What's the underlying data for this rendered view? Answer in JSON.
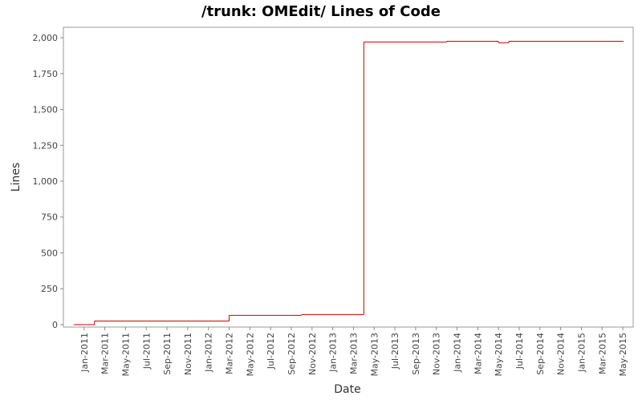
{
  "chart_data": {
    "type": "step",
    "title": "/trunk: OMEdit/ Lines of Code",
    "x_label": "Date",
    "y_label": "Lines",
    "series": [
      {
        "name": "Lines",
        "color": "#cc0000",
        "x": [
          "2010-12",
          "2011-02",
          "2012-03",
          "2012-10",
          "2013-04",
          "2013-12",
          "2014-05",
          "2014-06",
          "2015-05"
        ],
        "values": [
          0,
          25,
          65,
          70,
          1970,
          1975,
          1965,
          1975,
          1975
        ]
      }
    ],
    "xlim": [
      "2010-11",
      "2015-06"
    ],
    "xticks": [
      {
        "value": "2011-01",
        "label": "Jan-2011"
      },
      {
        "value": "2011-03",
        "label": "Mar-2011"
      },
      {
        "value": "2011-05",
        "label": "May-2011"
      },
      {
        "value": "2011-07",
        "label": "Jul-2011"
      },
      {
        "value": "2011-09",
        "label": "Sep-2011"
      },
      {
        "value": "2011-11",
        "label": "Nov-2011"
      },
      {
        "value": "2012-01",
        "label": "Jan-2012"
      },
      {
        "value": "2012-03",
        "label": "Mar-2012"
      },
      {
        "value": "2012-05",
        "label": "May-2012"
      },
      {
        "value": "2012-07",
        "label": "Jul-2012"
      },
      {
        "value": "2012-09",
        "label": "Sep-2012"
      },
      {
        "value": "2012-11",
        "label": "Nov-2012"
      },
      {
        "value": "2013-01",
        "label": "Jan-2013"
      },
      {
        "value": "2013-03",
        "label": "Mar-2013"
      },
      {
        "value": "2013-05",
        "label": "May-2013"
      },
      {
        "value": "2013-07",
        "label": "Jul-2013"
      },
      {
        "value": "2013-09",
        "label": "Sep-2013"
      },
      {
        "value": "2013-11",
        "label": "Nov-2013"
      },
      {
        "value": "2014-01",
        "label": "Jan-2014"
      },
      {
        "value": "2014-03",
        "label": "Mar-2014"
      },
      {
        "value": "2014-05",
        "label": "May-2014"
      },
      {
        "value": "2014-07",
        "label": "Jul-2014"
      },
      {
        "value": "2014-09",
        "label": "Sep-2014"
      },
      {
        "value": "2014-11",
        "label": "Nov-2014"
      },
      {
        "value": "2015-01",
        "label": "Jan-2015"
      },
      {
        "value": "2015-03",
        "label": "Mar-2015"
      },
      {
        "value": "2015-05",
        "label": "May-2015"
      }
    ],
    "ylim": [
      -17,
      2073
    ],
    "yticks": [
      0,
      250,
      500,
      750,
      {
        "value": 1000,
        "label": "1,000"
      },
      {
        "value": 1250,
        "label": "1,250"
      },
      {
        "value": 1500,
        "label": "1,500"
      },
      {
        "value": 1750,
        "label": "1,750"
      },
      {
        "value": 2000,
        "label": "2,000"
      }
    ]
  }
}
